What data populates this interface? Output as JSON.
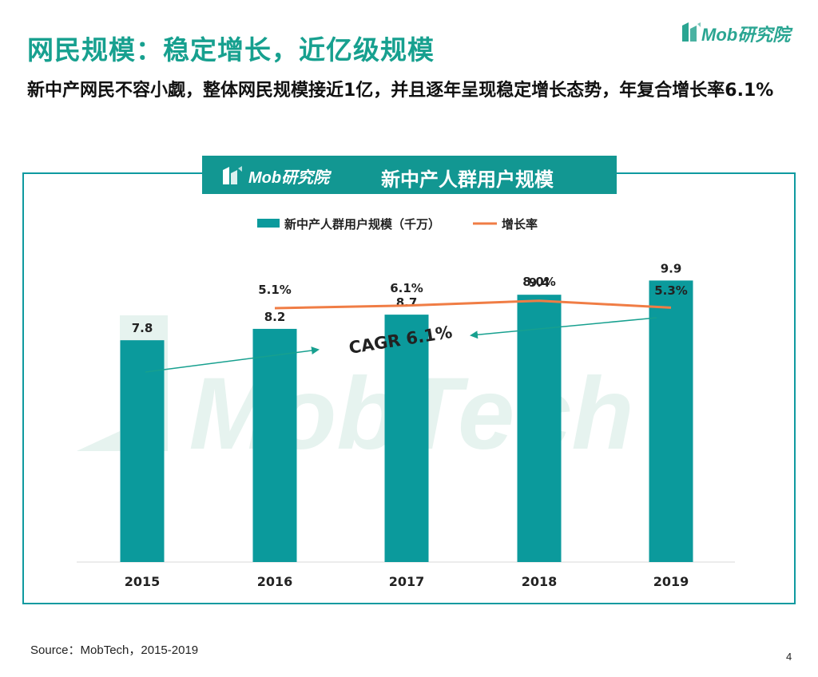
{
  "header": {
    "title": "网民规模：稳定增长，近亿级规模",
    "subtitle": "新中产网民不容小觑，整体网民规模接近1亿，并且逐年呈现稳定增长态势，年复合增长率6.1%"
  },
  "logo": {
    "text": "Mob研究院"
  },
  "watermark": "MobTech",
  "chart_data": {
    "type": "bar",
    "title": "新中产人群用户规模",
    "categories": [
      "2015",
      "2016",
      "2017",
      "2018",
      "2019"
    ],
    "series": [
      {
        "name": "新中产人群用户规模（千万）",
        "kind": "bar",
        "values": [
          7.8,
          8.2,
          8.7,
          9.4,
          9.9
        ]
      },
      {
        "name": "增长率",
        "kind": "line",
        "x": [
          "2016",
          "2017",
          "2018",
          "2019"
        ],
        "values_pct": [
          5.1,
          6.1,
          8.0,
          5.3
        ]
      }
    ],
    "bar_labels": [
      "7.8",
      "8.2",
      "8.7",
      "9.4",
      "9.9"
    ],
    "line_labels": [
      "5.1%",
      "6.1%",
      "8.0%",
      "5.3%"
    ],
    "annotation": "CAGR 6.1%",
    "ylim": [
      0,
      10.5
    ],
    "legend_position": "top-center",
    "colors": {
      "bar": "#0b9a9c",
      "line": "#f07d45",
      "arrow": "#17a08f",
      "frame": "#0f9aa0",
      "title": "#17a08f"
    }
  },
  "footer": {
    "source": "Source：MobTech，2015-2019",
    "page": "4"
  }
}
